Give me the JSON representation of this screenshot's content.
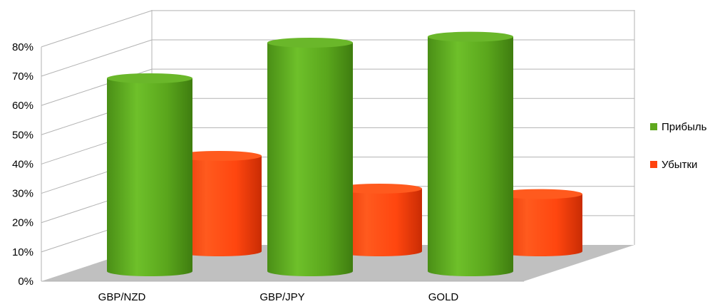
{
  "chart_data": {
    "type": "bar",
    "style": "3d-cylinder",
    "categories": [
      "GBP/NZD",
      "GBP/JPY",
      "GOLD"
    ],
    "series": [
      {
        "name": "Прибыль",
        "values": [
          65,
          77,
          79
        ],
        "color": "#5fa81e"
      },
      {
        "name": "Убытки",
        "values": [
          35,
          23,
          21
        ],
        "color": "#ff420e"
      }
    ],
    "yticks": [
      "0%",
      "10%",
      "20%",
      "30%",
      "40%",
      "50%",
      "60%",
      "70%",
      "80%"
    ],
    "ylim": [
      0,
      80
    ],
    "grid": true,
    "legend_position": "right",
    "floor_color": "#c0c0c0"
  }
}
